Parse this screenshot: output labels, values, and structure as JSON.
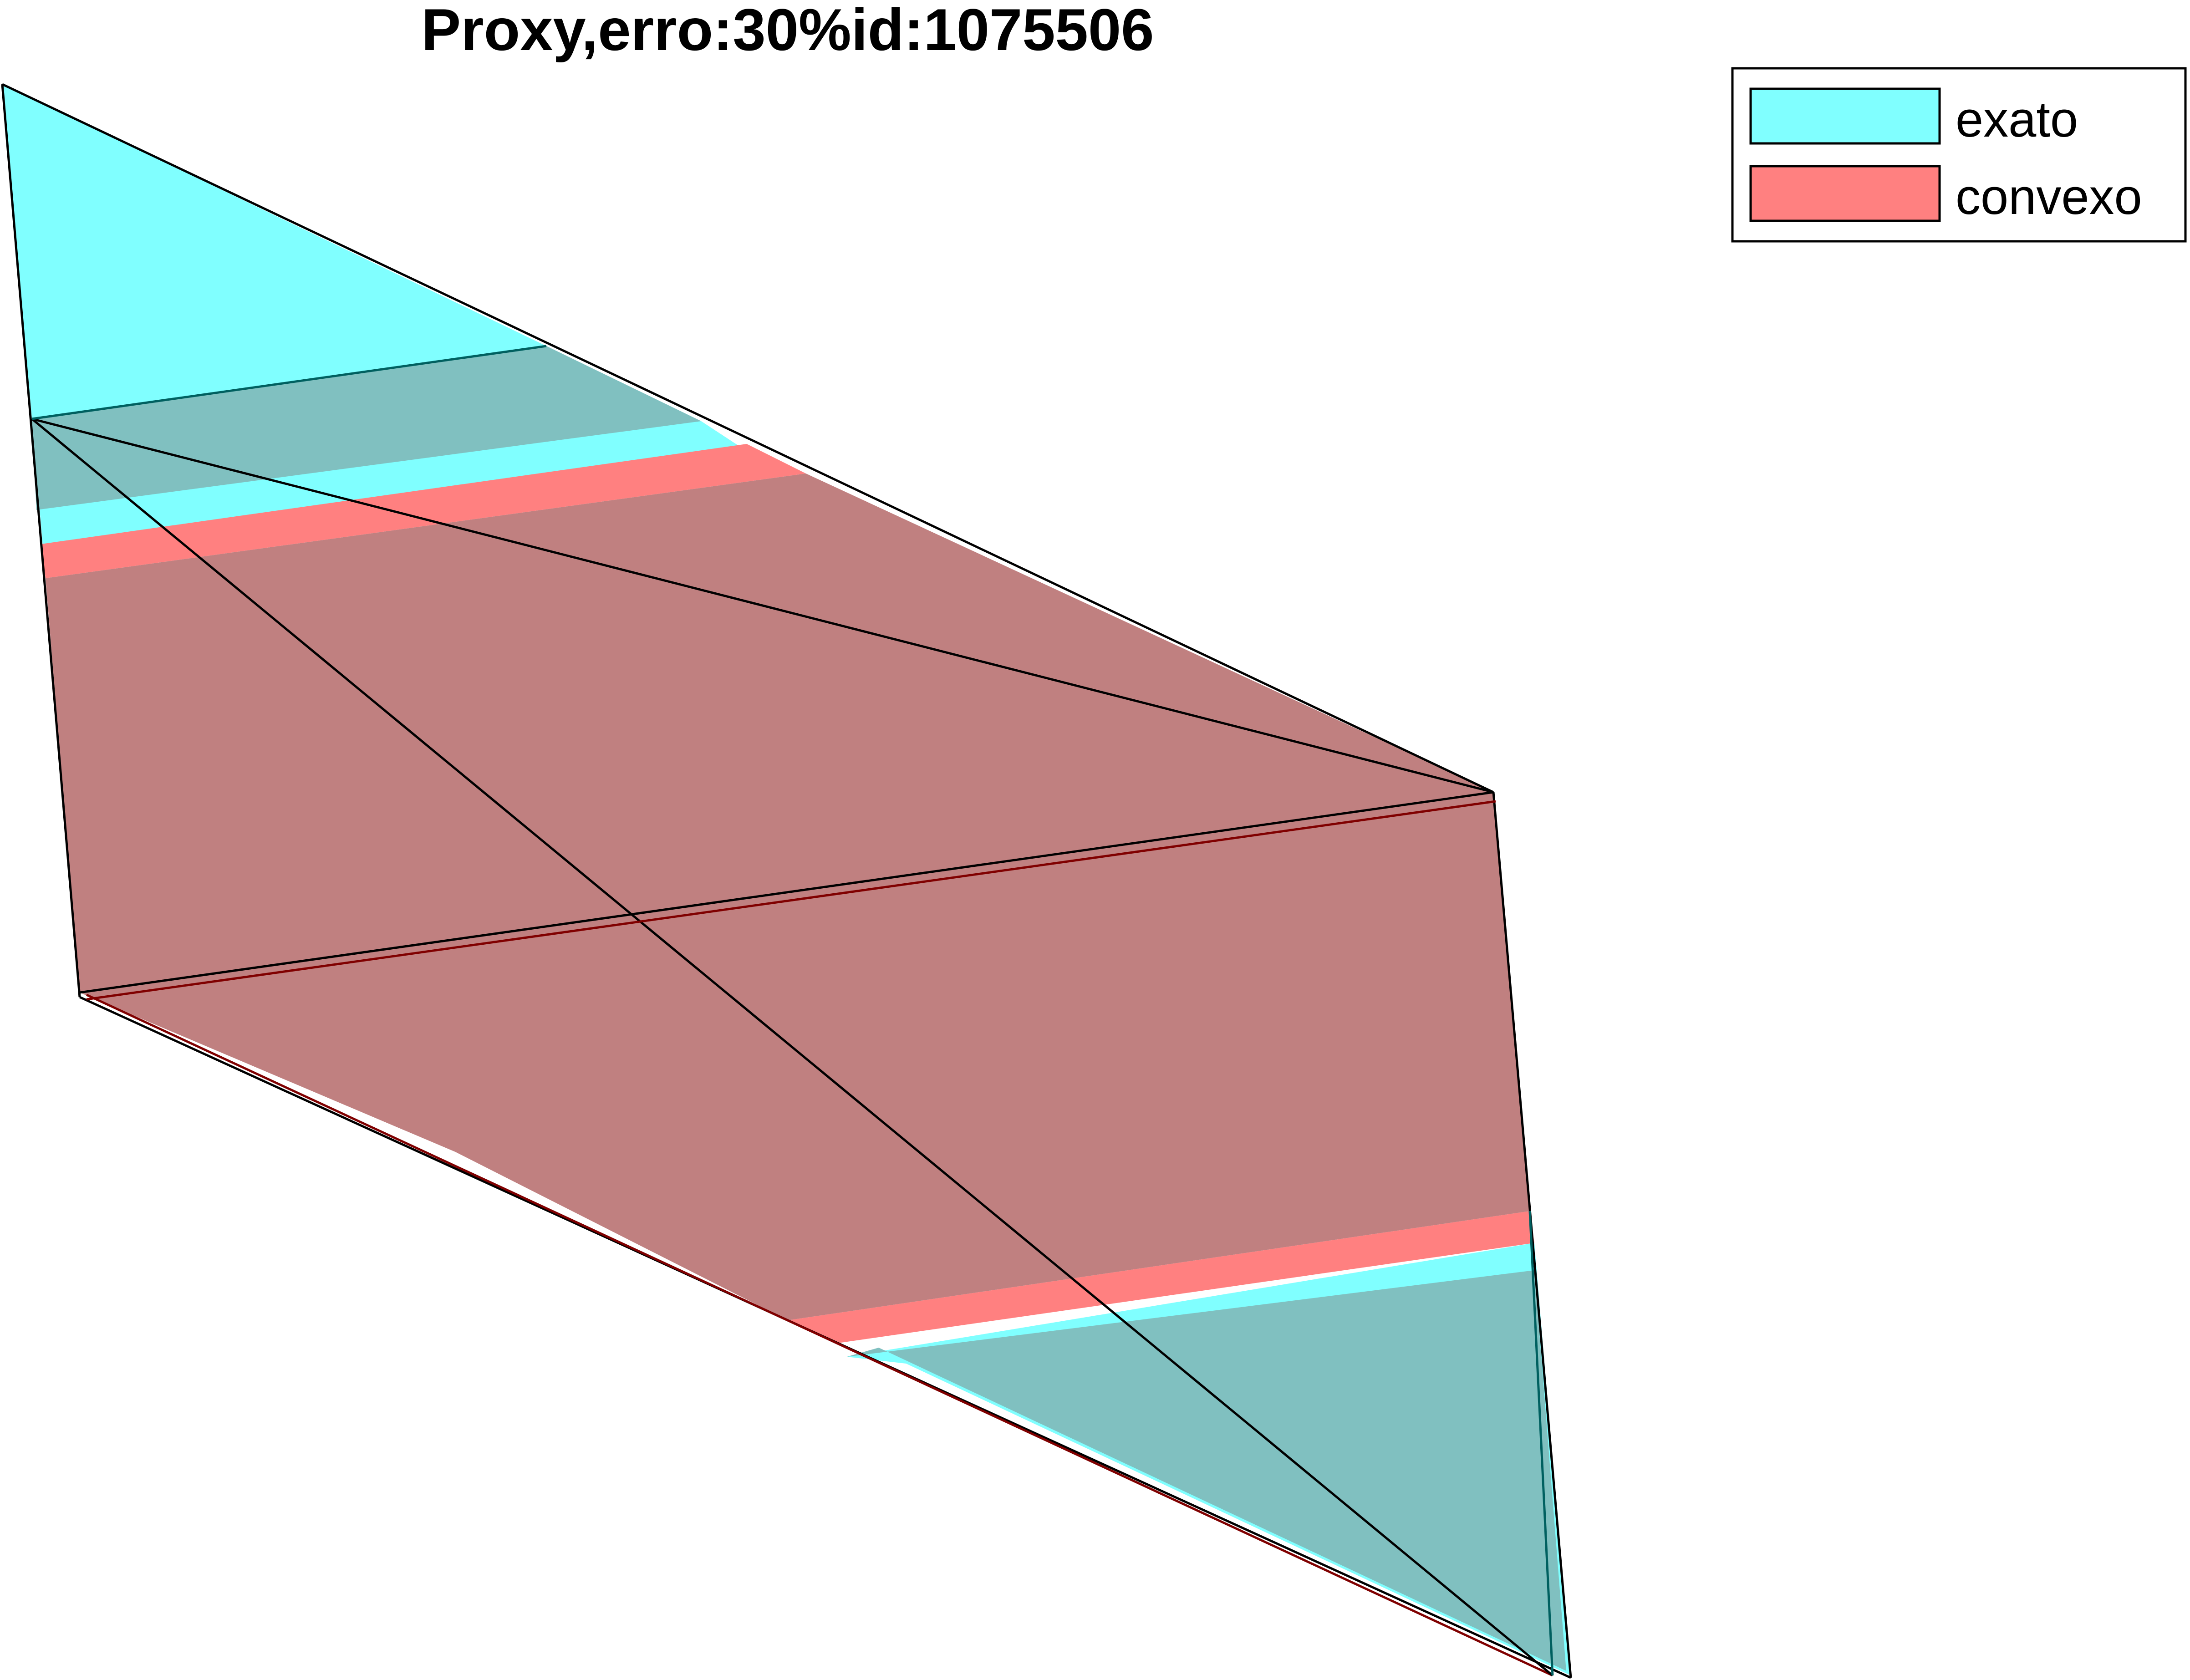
{
  "title": "Proxy,erro:30%id:1075506",
  "legend": {
    "items": [
      {
        "label": "exato",
        "color": "#80ffff"
      },
      {
        "label": "convexo",
        "color": "#ff8080"
      }
    ]
  },
  "colors": {
    "exato": "#80ffff",
    "convexo": "#ff8080",
    "overlap": "#c08080",
    "overlap_exato_edge": "#80c0c0",
    "edge": "#000000",
    "exato_inner_edge": "#006060",
    "convexo_inner_edge": "#800000"
  }
}
